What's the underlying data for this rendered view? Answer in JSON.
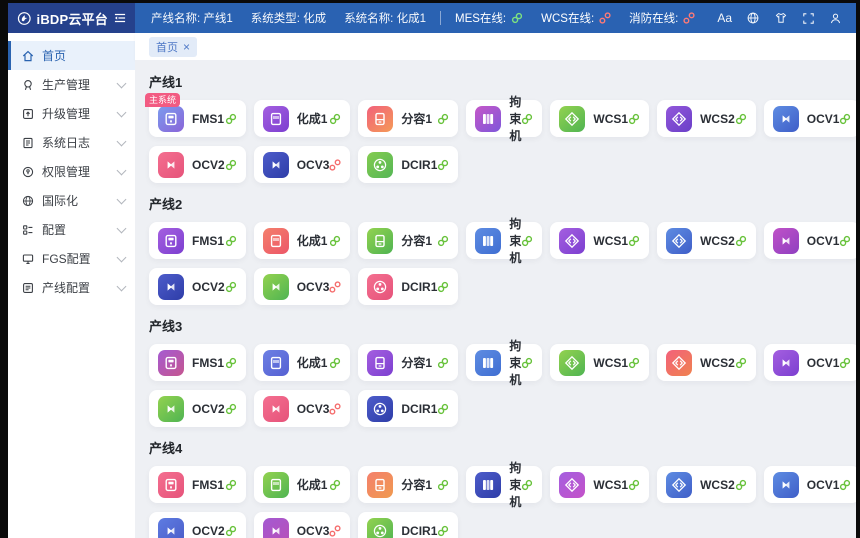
{
  "header": {
    "logo_text": "iBDP云平台",
    "font_icon_label": "Aa",
    "info": [
      {
        "label": "产线名称:",
        "value": "产线1"
      },
      {
        "label": "系统类型:",
        "value": "化成"
      },
      {
        "label": "系统名称:",
        "value": "化成1"
      }
    ],
    "status": [
      {
        "label": "MES在线:",
        "state": "online"
      },
      {
        "label": "WCS在线:",
        "state": "offline"
      },
      {
        "label": "消防在线:",
        "state": "offline"
      }
    ]
  },
  "sidebar": {
    "items": [
      {
        "key": "home",
        "label": "首页",
        "active": true,
        "expandable": false
      },
      {
        "key": "production",
        "label": "生产管理",
        "active": false,
        "expandable": true
      },
      {
        "key": "upgrade",
        "label": "升级管理",
        "active": false,
        "expandable": true
      },
      {
        "key": "log",
        "label": "系统日志",
        "active": false,
        "expandable": true
      },
      {
        "key": "permission",
        "label": "权限管理",
        "active": false,
        "expandable": true
      },
      {
        "key": "i18n",
        "label": "国际化",
        "active": false,
        "expandable": true
      },
      {
        "key": "config",
        "label": "配置",
        "active": false,
        "expandable": true
      },
      {
        "key": "fgs",
        "label": "FGS配置",
        "active": false,
        "expandable": true
      },
      {
        "key": "lineconfig",
        "label": "产线配置",
        "active": false,
        "expandable": true
      }
    ]
  },
  "tabs": [
    {
      "label": "首页",
      "closable": true
    }
  ],
  "colors": {
    "header_bg": "#2a62b2",
    "logo_bg": "#25418c",
    "accent_blue": "#2a63b0",
    "online_green": "#67c23a",
    "offline_red": "#f56c6c",
    "badge_pink": "#f25b82",
    "content_bg": "#eef0f4"
  },
  "sections": [
    {
      "title": "产线1",
      "cards": [
        {
          "label": "FMS1",
          "icon": "fms",
          "colors": [
            "#7b9bee",
            "#8a64d8"
          ],
          "link": "online",
          "badge": "主系统"
        },
        {
          "label": "化成1",
          "icon": "cell",
          "colors": [
            "#a45fe0",
            "#7c3fd0"
          ],
          "link": "online"
        },
        {
          "label": "分容1",
          "icon": "cell2",
          "colors": [
            "#f2617b",
            "#f49a57"
          ],
          "link": "online"
        },
        {
          "label": "拘束机",
          "icon": "books",
          "colors": [
            "#c557c8",
            "#7e57da"
          ],
          "link": "online"
        },
        {
          "label": "WCS1",
          "icon": "code",
          "colors": [
            "#93d24f",
            "#4fb452"
          ],
          "link": "online"
        },
        {
          "label": "WCS2",
          "icon": "code",
          "colors": [
            "#9257da",
            "#6a3fc8"
          ],
          "link": "online"
        },
        {
          "label": "OCV1",
          "icon": "ocv",
          "colors": [
            "#5e8ce2",
            "#3f5ec8"
          ],
          "link": "online"
        },
        {
          "label": "OCV2",
          "icon": "ocv",
          "colors": [
            "#f46f90",
            "#e6537a"
          ],
          "link": "online"
        },
        {
          "label": "OCV3",
          "icon": "ocv",
          "colors": [
            "#4d5cca",
            "#2e3da8"
          ],
          "link": "offline"
        },
        {
          "label": "DCIR1",
          "icon": "dcir",
          "colors": [
            "#84cc50",
            "#55b656"
          ],
          "link": "online"
        }
      ]
    },
    {
      "title": "产线2",
      "cards": [
        {
          "label": "FMS1",
          "icon": "fms",
          "colors": [
            "#a45fe0",
            "#7c3fd0"
          ],
          "link": "online"
        },
        {
          "label": "化成1",
          "icon": "cell",
          "colors": [
            "#f4806c",
            "#ec5668"
          ],
          "link": "online"
        },
        {
          "label": "分容1",
          "icon": "cell2",
          "colors": [
            "#93d24f",
            "#4fb452"
          ],
          "link": "online"
        },
        {
          "label": "拘束机",
          "icon": "books",
          "colors": [
            "#5e8ce2",
            "#3f6ed2"
          ],
          "link": "online"
        },
        {
          "label": "WCS1",
          "icon": "code",
          "colors": [
            "#a45fe0",
            "#7c3fd0"
          ],
          "link": "online"
        },
        {
          "label": "WCS2",
          "icon": "code",
          "colors": [
            "#5e8ce2",
            "#3f5ec8"
          ],
          "link": "online"
        },
        {
          "label": "OCV1",
          "icon": "ocv",
          "colors": [
            "#c052c8",
            "#8f3fc0"
          ],
          "link": "online"
        },
        {
          "label": "OCV2",
          "icon": "ocv",
          "colors": [
            "#4d5cca",
            "#2e3da8"
          ],
          "link": "online"
        },
        {
          "label": "OCV3",
          "icon": "ocv",
          "colors": [
            "#93d24f",
            "#4fb452"
          ],
          "link": "offline"
        },
        {
          "label": "DCIR1",
          "icon": "dcir",
          "colors": [
            "#f46f90",
            "#e6537a"
          ],
          "link": "online"
        }
      ]
    },
    {
      "title": "产线3",
      "cards": [
        {
          "label": "FMS1",
          "icon": "fms",
          "colors": [
            "#a55ad2",
            "#c5568f"
          ],
          "link": "online"
        },
        {
          "label": "化成1",
          "icon": "cell",
          "colors": [
            "#6d80e4",
            "#5560d2"
          ],
          "link": "online"
        },
        {
          "label": "分容1",
          "icon": "cell2",
          "colors": [
            "#a45fe0",
            "#7c3fd0"
          ],
          "link": "online"
        },
        {
          "label": "拘束机",
          "icon": "books",
          "colors": [
            "#5e8ce2",
            "#3f6ed2"
          ],
          "link": "online"
        },
        {
          "label": "WCS1",
          "icon": "code",
          "colors": [
            "#93d24f",
            "#4fb452"
          ],
          "link": "online"
        },
        {
          "label": "WCS2",
          "icon": "code",
          "colors": [
            "#f2617b",
            "#f0824f"
          ],
          "link": "online"
        },
        {
          "label": "OCV1",
          "icon": "ocv",
          "colors": [
            "#a45fe0",
            "#7c3fd0"
          ],
          "link": "online"
        },
        {
          "label": "OCV2",
          "icon": "ocv",
          "colors": [
            "#93d24f",
            "#4fb452"
          ],
          "link": "online"
        },
        {
          "label": "OCV3",
          "icon": "ocv",
          "colors": [
            "#f46f90",
            "#e6537a"
          ],
          "link": "offline"
        },
        {
          "label": "DCIR1",
          "icon": "dcir",
          "colors": [
            "#4d5cca",
            "#2e3da8"
          ],
          "link": "online"
        }
      ]
    },
    {
      "title": "产线4",
      "cards": [
        {
          "label": "FMS1",
          "icon": "fms",
          "colors": [
            "#f46f90",
            "#e6537a"
          ],
          "link": "online"
        },
        {
          "label": "化成1",
          "icon": "cell",
          "colors": [
            "#93d24f",
            "#4fb452"
          ],
          "link": "online"
        },
        {
          "label": "分容1",
          "icon": "cell2",
          "colors": [
            "#f4806c",
            "#f09a50"
          ],
          "link": "online"
        },
        {
          "label": "拘束机",
          "icon": "books",
          "colors": [
            "#4d5cca",
            "#2e3da8"
          ],
          "link": "online"
        },
        {
          "label": "WCS1",
          "icon": "code",
          "colors": [
            "#a45fe0",
            "#c452c8"
          ],
          "link": "online"
        },
        {
          "label": "WCS2",
          "icon": "code",
          "colors": [
            "#5e8ce2",
            "#3f5ec8"
          ],
          "link": "online"
        },
        {
          "label": "OCV1",
          "icon": "ocv",
          "colors": [
            "#5e8ce2",
            "#3f5ec8"
          ],
          "link": "online"
        },
        {
          "label": "OCV2",
          "icon": "ocv",
          "colors": [
            "#5e7ce2",
            "#4a5cc8"
          ],
          "link": "online"
        },
        {
          "label": "OCV3",
          "icon": "ocv",
          "colors": [
            "#a45ad2",
            "#b84fb8"
          ],
          "link": "offline"
        },
        {
          "label": "DCIR1",
          "icon": "dcir",
          "colors": [
            "#93d24f",
            "#4fb452"
          ],
          "link": "online"
        }
      ]
    }
  ]
}
